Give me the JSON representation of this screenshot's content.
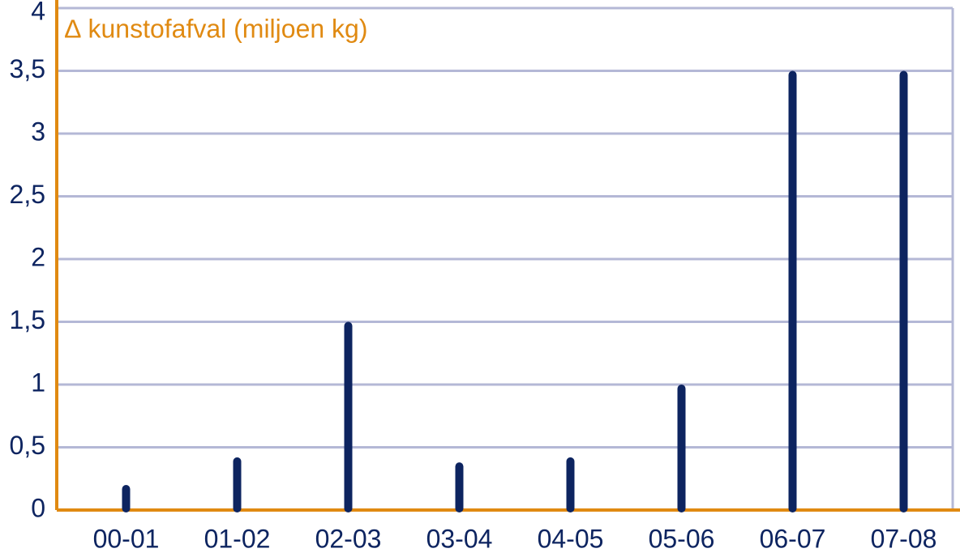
{
  "chart_data": {
    "type": "bar",
    "title": "∆ kunstofafval (miljoen kg)",
    "categories": [
      "00-01",
      "01-02",
      "02-03",
      "03-04",
      "04-05",
      "05-06",
      "06-07",
      "07-08"
    ],
    "values": [
      0.2,
      0.42,
      1.5,
      0.38,
      0.42,
      1.0,
      3.5,
      3.5
    ],
    "color": "#0d2460",
    "ylim": [
      0,
      4
    ],
    "yticks": [
      0,
      {
        "value": 0.5,
        "label": "0,5"
      },
      1,
      {
        "value": 1.5,
        "label": "1,5"
      },
      2,
      {
        "value": 2.5,
        "label": "2,5"
      },
      3,
      {
        "value": 3.5,
        "label": "3,5"
      },
      4
    ],
    "grid": true
  }
}
